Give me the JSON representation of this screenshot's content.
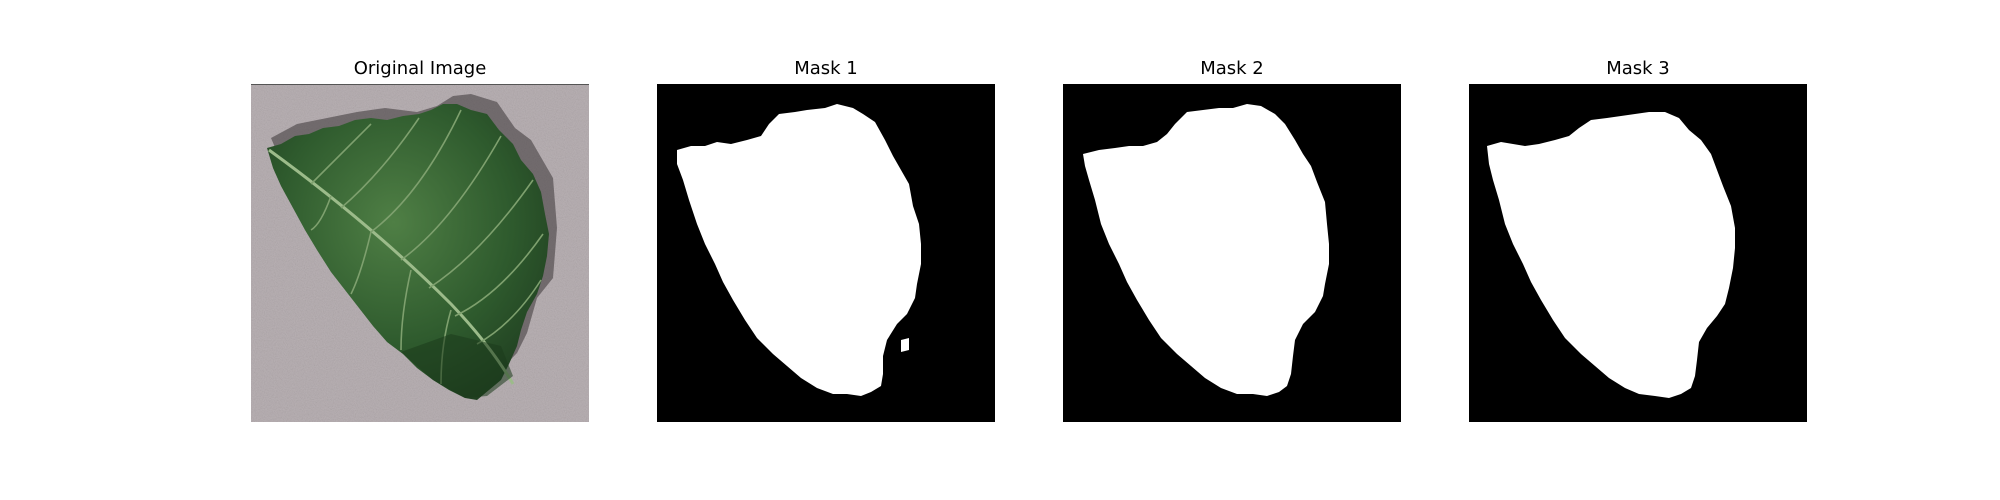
{
  "figure": {
    "panels": [
      {
        "title": "Original Image",
        "kind": "photo",
        "subject": "leaf-photo"
      },
      {
        "title": "Mask 1",
        "kind": "mask",
        "subject": "leaf-mask"
      },
      {
        "title": "Mask 2",
        "kind": "mask",
        "subject": "leaf-mask"
      },
      {
        "title": "Mask 3",
        "kind": "mask",
        "subject": "leaf-mask"
      }
    ]
  },
  "colors": {
    "background": "#ffffff",
    "mask_background": "#000000",
    "mask_foreground": "#ffffff",
    "photo_background": "#b9b1b4",
    "leaf_green": "#2e5a2d",
    "leaf_vein": "#8fb27d"
  }
}
